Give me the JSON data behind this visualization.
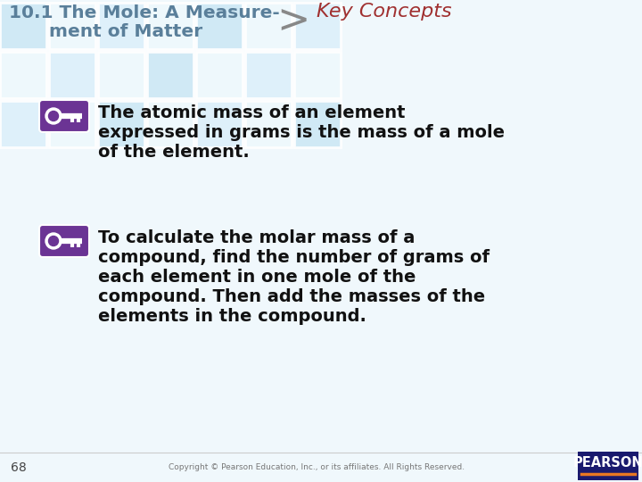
{
  "bg_color": "#eef6fb",
  "title_line1": "10.1 The Mole: A Measure-",
  "title_line2": "ment of Matter",
  "title_color": "#5a7f9a",
  "arrow_color": "#888888",
  "key_concepts_text": "Key Concepts",
  "key_concepts_color": "#a03030",
  "bullet1_line1": "The atomic mass of an element",
  "bullet1_line2": "expressed in grams is the mass of a mole",
  "bullet1_line3": "of the element.",
  "bullet2_line1": "To calculate the molar mass of a",
  "bullet2_line2": "compound, find the number of grams of",
  "bullet2_line3": "each element in one mole of the",
  "bullet2_line4": "compound. Then add the masses of the",
  "bullet2_line5": "elements in the compound.",
  "bullet_text_color": "#111111",
  "key_icon_color": "#6b3494",
  "page_number": "68",
  "copyright_text": "Copyright © Pearson Education, Inc., or its affiliates. All Rights Reserved.",
  "pearson_bg": "#1a1a6e",
  "pearson_text": "PEARSON",
  "tile_color_a": "#cde8f5",
  "tile_color_b": "#ddf0fa",
  "tile_white": "#eef8fd"
}
